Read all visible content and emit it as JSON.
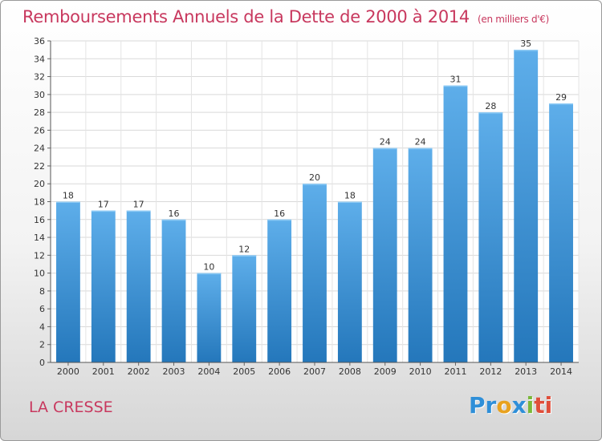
{
  "chart_data": {
    "type": "bar",
    "title": "Remboursements Annuels de la Dette de 2000 à 2014",
    "subtitle": "(en milliers d'€)",
    "categories": [
      "2000",
      "2001",
      "2002",
      "2003",
      "2004",
      "2005",
      "2006",
      "2007",
      "2008",
      "2009",
      "2010",
      "2011",
      "2012",
      "2013",
      "2014"
    ],
    "values": [
      18,
      17,
      17,
      16,
      10,
      12,
      16,
      20,
      18,
      24,
      24,
      31,
      28,
      35,
      29
    ],
    "ylim": [
      0,
      36
    ],
    "yticks": [
      0,
      2,
      4,
      6,
      8,
      10,
      12,
      14,
      16,
      18,
      20,
      22,
      24,
      26,
      28,
      30,
      32,
      34,
      36
    ],
    "xlabel": "",
    "ylabel": "",
    "grid": true,
    "bar_color": "#3f94d6"
  },
  "footer": {
    "commune": "LA CRESSE",
    "brand_letters": [
      "P",
      "r",
      "o",
      "x",
      "i",
      "ti"
    ]
  }
}
